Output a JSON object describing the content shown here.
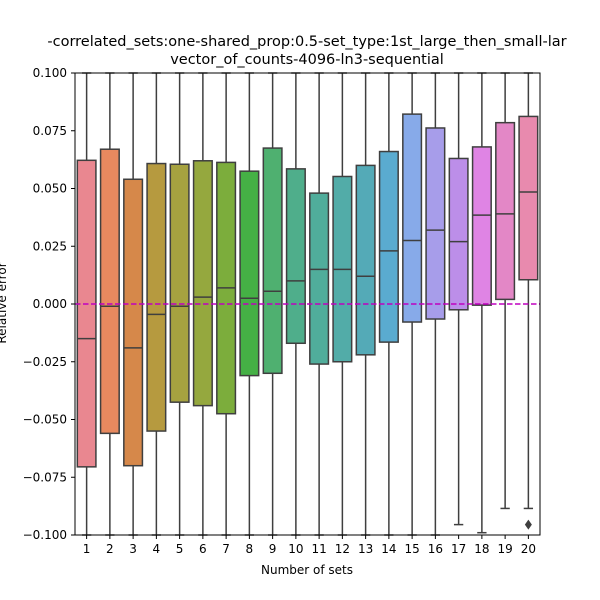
{
  "chart_data": {
    "type": "box",
    "title_line1": "-correlated_sets:one-shared_prop:0.5-set_type:1st_large_then_small-lar",
    "title_line2": "vector_of_counts-4096-ln3-sequential",
    "xlabel": "Number of sets",
    "ylabel": "Relative error",
    "ylim": [
      -0.1,
      0.1
    ],
    "yticks": [
      -0.1,
      -0.075,
      -0.05,
      -0.025,
      0.0,
      0.025,
      0.05,
      0.075,
      0.1
    ],
    "ytick_labels": [
      "−0.100",
      "−0.075",
      "−0.050",
      "−0.025",
      "0.000",
      "0.025",
      "0.050",
      "0.075",
      "0.100"
    ],
    "categories": [
      "1",
      "2",
      "3",
      "4",
      "5",
      "6",
      "7",
      "8",
      "9",
      "10",
      "11",
      "12",
      "13",
      "14",
      "15",
      "16",
      "17",
      "18",
      "19",
      "20"
    ],
    "reference_line": {
      "y": 0.0,
      "color": "#bf00bf",
      "style": "dashed"
    },
    "boxes": [
      {
        "q1": -0.0705,
        "median": -0.015,
        "q3": 0.0622,
        "whisker_low": -0.1,
        "whisker_high": 0.1,
        "color": "#e98790"
      },
      {
        "q1": -0.056,
        "median": -0.001,
        "q3": 0.067,
        "whisker_low": -0.1,
        "whisker_high": 0.1,
        "color": "#e7895f"
      },
      {
        "q1": -0.07,
        "median": -0.019,
        "q3": 0.054,
        "whisker_low": -0.1,
        "whisker_high": 0.1,
        "color": "#d6884a"
      },
      {
        "q1": -0.055,
        "median": -0.0045,
        "q3": 0.0608,
        "whisker_low": -0.1,
        "whisker_high": 0.1,
        "color": "#b69a3f"
      },
      {
        "q1": -0.0425,
        "median": -0.001,
        "q3": 0.0605,
        "whisker_low": -0.1,
        "whisker_high": 0.1,
        "color": "#a6a240"
      },
      {
        "q1": -0.044,
        "median": 0.003,
        "q3": 0.062,
        "whisker_low": -0.1,
        "whisker_high": 0.1,
        "color": "#95a83e"
      },
      {
        "q1": -0.0475,
        "median": 0.007,
        "q3": 0.0613,
        "whisker_low": -0.1,
        "whisker_high": 0.1,
        "color": "#7cad3c"
      },
      {
        "q1": -0.031,
        "median": 0.0025,
        "q3": 0.0575,
        "whisker_low": -0.1,
        "whisker_high": 0.1,
        "color": "#45b045"
      },
      {
        "q1": -0.03,
        "median": 0.0055,
        "q3": 0.0675,
        "whisker_low": -0.1,
        "whisker_high": 0.1,
        "color": "#4fb070"
      },
      {
        "q1": -0.017,
        "median": 0.01,
        "q3": 0.0585,
        "whisker_low": -0.1,
        "whisker_high": 0.1,
        "color": "#4fae8b"
      },
      {
        "q1": -0.026,
        "median": 0.015,
        "q3": 0.048,
        "whisker_low": -0.1,
        "whisker_high": 0.1,
        "color": "#50ad9b"
      },
      {
        "q1": -0.025,
        "median": 0.015,
        "q3": 0.0552,
        "whisker_low": -0.1,
        "whisker_high": 0.1,
        "color": "#52aca8"
      },
      {
        "q1": -0.022,
        "median": 0.012,
        "q3": 0.06,
        "whisker_low": -0.1,
        "whisker_high": 0.1,
        "color": "#54aab7"
      },
      {
        "q1": -0.0165,
        "median": 0.023,
        "q3": 0.066,
        "whisker_low": -0.1,
        "whisker_high": 0.1,
        "color": "#5aabd0"
      },
      {
        "q1": -0.0078,
        "median": 0.0275,
        "q3": 0.0822,
        "whisker_low": -0.1,
        "whisker_high": 0.1,
        "color": "#87aae9"
      },
      {
        "q1": -0.0065,
        "median": 0.032,
        "q3": 0.0762,
        "whisker_low": -0.1,
        "whisker_high": 0.1,
        "color": "#a79dea"
      },
      {
        "q1": -0.0025,
        "median": 0.027,
        "q3": 0.063,
        "whisker_low": -0.0955,
        "whisker_high": 0.1,
        "color": "#bc8ee9"
      },
      {
        "q1": -0.0005,
        "median": 0.0385,
        "q3": 0.068,
        "whisker_low": -0.099,
        "whisker_high": 0.1,
        "color": "#df84e4"
      },
      {
        "q1": 0.002,
        "median": 0.039,
        "q3": 0.0785,
        "whisker_low": -0.0885,
        "whisker_high": 0.1,
        "color": "#e387c6"
      },
      {
        "q1": 0.0105,
        "median": 0.0485,
        "q3": 0.0812,
        "whisker_low": -0.0885,
        "whisker_high": 0.1,
        "color": "#e88aae",
        "outliers": [
          -0.0955
        ]
      }
    ]
  }
}
